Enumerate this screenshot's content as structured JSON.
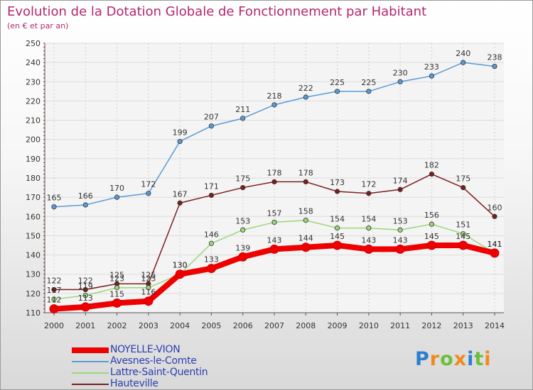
{
  "header": {
    "title": "Evolution de la Dotation Globale de Fonctionnement par Habitant",
    "subtitle": "(en € et par an)"
  },
  "chart_data": {
    "type": "line",
    "title": "Evolution de la Dotation Globale de Fonctionnement par Habitant",
    "subtitle": "(en € et par an)",
    "xlabel": "",
    "ylabel": "",
    "x": [
      2000,
      2001,
      2002,
      2003,
      2004,
      2005,
      2006,
      2007,
      2008,
      2009,
      2010,
      2011,
      2012,
      2013,
      2014
    ],
    "ylim": [
      110,
      250
    ],
    "yticks": [
      110,
      120,
      130,
      140,
      150,
      160,
      170,
      180,
      190,
      200,
      210,
      220,
      230,
      240,
      250
    ],
    "grid": true,
    "legend": "bottom-left",
    "series": [
      {
        "name": "Hauteville",
        "color": "#7b1e1e",
        "values": [
          122,
          122,
          125,
          125,
          167,
          171,
          175,
          178,
          178,
          173,
          172,
          174,
          182,
          175,
          160
        ]
      },
      {
        "name": "Avesnes-le-Comte",
        "color": "#5b9bd5",
        "values": [
          165,
          166,
          170,
          172,
          199,
          207,
          211,
          218,
          222,
          225,
          225,
          230,
          233,
          240,
          238
        ]
      },
      {
        "name": "Lattre-Saint-Quentin",
        "color": "#9bd67a",
        "values": [
          117,
          119,
          123,
          123,
          130,
          146,
          153,
          157,
          158,
          154,
          154,
          153,
          156,
          151,
          141
        ]
      },
      {
        "name": "NOYELLE-VION",
        "color": "#ee0000",
        "values": [
          112,
          113,
          115,
          116,
          130,
          133,
          139,
          143,
          144,
          145,
          143,
          143,
          145,
          145,
          141
        ]
      }
    ]
  },
  "legend": {
    "items": [
      {
        "label": "NOYELLE-VION",
        "color": "#ee0000",
        "width": 8
      },
      {
        "label": "Avesnes-le-Comte",
        "color": "#5b9bd5",
        "width": 2
      },
      {
        "label": "Lattre-Saint-Quentin",
        "color": "#9bd67a",
        "width": 2
      },
      {
        "label": "Hauteville",
        "color": "#7b1e1e",
        "width": 2
      }
    ]
  },
  "logo": {
    "letters": [
      {
        "ch": "P",
        "color": "#2b7fd0"
      },
      {
        "ch": "r",
        "color": "#f08a1c"
      },
      {
        "ch": "o",
        "color": "#6cbf3a"
      },
      {
        "ch": "x",
        "color": "#f08a1c"
      },
      {
        "ch": "i",
        "color": "#2b7fd0"
      },
      {
        "ch": "t",
        "color": "#6cbf3a"
      },
      {
        "ch": "i",
        "color": "#f08a1c"
      }
    ]
  }
}
